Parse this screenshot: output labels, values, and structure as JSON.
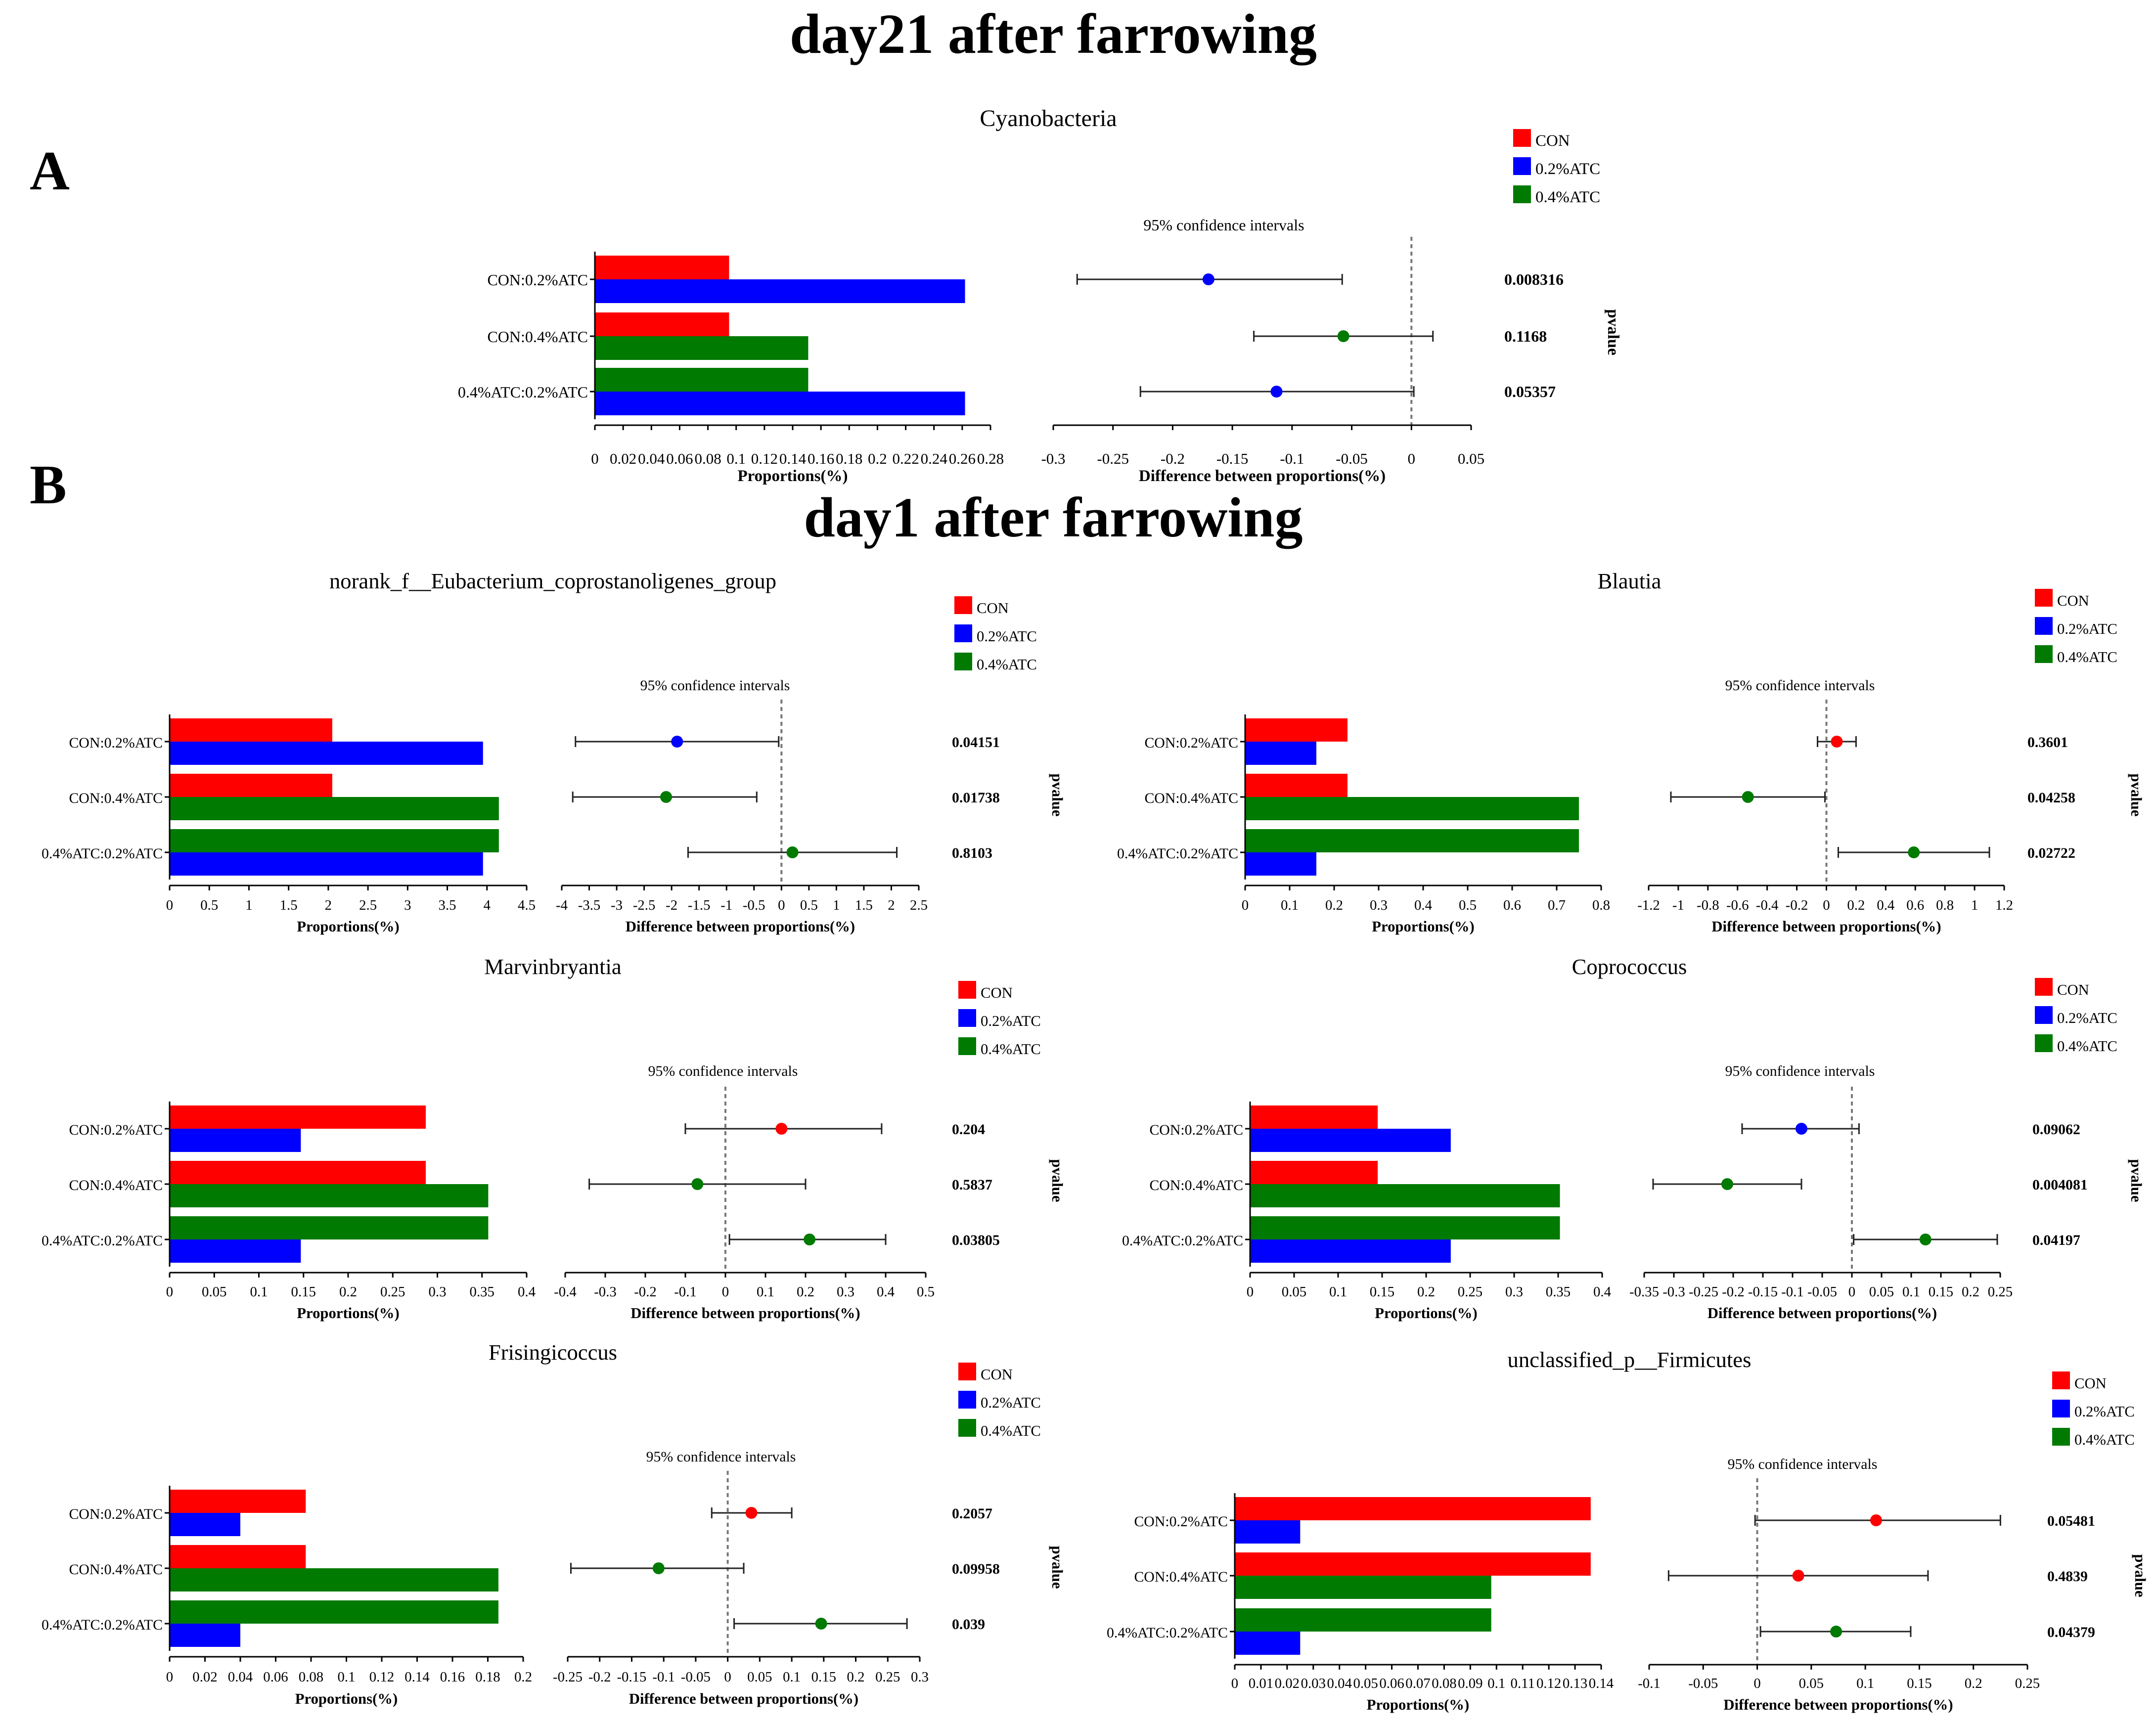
{
  "headings": {
    "top": "day21 after farrowing",
    "middle": "day1 after farrowing",
    "section_a": "A",
    "section_b": "B"
  },
  "common": {
    "xlabel_left": "Proportions(%)",
    "xlabel_right": "Difference between proportions(%)",
    "ci_label": "95% confidence intervals",
    "pvalue_label": "pvalue",
    "legend": [
      "CON",
      "0.2%ATC",
      "0.4%ATC"
    ],
    "colors": {
      "CON": "#ff0000",
      "0.2%ATC": "#0000ff",
      "0.4%ATC": "#007a00"
    },
    "comparisons": [
      "CON:0.2%ATC",
      "CON:0.4%ATC",
      "0.4%ATC:0.2%ATC"
    ]
  },
  "chart_data": [
    {
      "type": "bar",
      "title": "Cyanobacteria",
      "means": {
        "CON": 0.095,
        "0.2%ATC": 0.262,
        "0.4%ATC": 0.151
      },
      "bar_xlim": [
        0,
        0.28
      ],
      "bar_ticks": [
        "0",
        "0.02",
        "0.04",
        "0.06",
        "0.08",
        "0.1",
        "0.12",
        "0.14",
        "0.16",
        "0.18",
        "0.2",
        "0.22",
        "0.24",
        "0.26",
        "0.28"
      ],
      "diff_xlim": [
        -0.3,
        0.05
      ],
      "diff_ticks": [
        "-0.3",
        "-0.25",
        "-0.2",
        "-0.15",
        "-0.1",
        "-0.05",
        "0",
        "0.05"
      ],
      "diffs": [
        {
          "comparison": "CON:0.2%ATC",
          "estimate": -0.17,
          "low": -0.28,
          "high": -0.058,
          "color_group": "0.2%ATC",
          "pvalue": "0.008316"
        },
        {
          "comparison": "CON:0.4%ATC",
          "estimate": -0.057,
          "low": -0.132,
          "high": 0.018,
          "color_group": "0.4%ATC",
          "pvalue": "0.1168"
        },
        {
          "comparison": "0.4%ATC:0.2%ATC",
          "estimate": -0.113,
          "low": -0.227,
          "high": 0.002,
          "color_group": "0.2%ATC",
          "pvalue": "0.05357"
        }
      ]
    },
    {
      "type": "bar",
      "title": "norank_f__Eubacterium_coprostanoligenes_group",
      "means": {
        "CON": 2.05,
        "0.2%ATC": 3.95,
        "0.4%ATC": 4.15
      },
      "bar_xlim": [
        0,
        4.5
      ],
      "bar_ticks": [
        "0",
        "0.5",
        "1",
        "1.5",
        "2",
        "2.5",
        "3",
        "3.5",
        "4",
        "4.5"
      ],
      "diff_xlim": [
        -4,
        2.5
      ],
      "diff_ticks": [
        "-4",
        "-3.5",
        "-3",
        "-2.5",
        "-2",
        "-1.5",
        "-1",
        "-0.5",
        "0",
        "0.5",
        "1",
        "1.5",
        "2",
        "2.5"
      ],
      "diffs": [
        {
          "comparison": "CON:0.2%ATC",
          "estimate": -1.9,
          "low": -3.75,
          "high": -0.05,
          "color_group": "0.2%ATC",
          "pvalue": "0.04151"
        },
        {
          "comparison": "CON:0.4%ATC",
          "estimate": -2.1,
          "low": -3.8,
          "high": -0.45,
          "color_group": "0.4%ATC",
          "pvalue": "0.01738"
        },
        {
          "comparison": "0.4%ATC:0.2%ATC",
          "estimate": 0.2,
          "low": -1.7,
          "high": 2.1,
          "color_group": "0.4%ATC",
          "pvalue": "0.8103"
        }
      ]
    },
    {
      "type": "bar",
      "title": "Blautia",
      "means": {
        "CON": 0.23,
        "0.2%ATC": 0.16,
        "0.4%ATC": 0.75
      },
      "bar_xlim": [
        0,
        0.8
      ],
      "bar_ticks": [
        "0",
        "0.1",
        "0.2",
        "0.3",
        "0.4",
        "0.5",
        "0.6",
        "0.7",
        "0.8"
      ],
      "diff_xlim": [
        -1.2,
        1.2
      ],
      "diff_ticks": [
        "-1.2",
        "-1",
        "-0.8",
        "-0.6",
        "-0.4",
        "-0.2",
        "0",
        "0.2",
        "0.4",
        "0.6",
        "0.8",
        "1",
        "1.2"
      ],
      "diffs": [
        {
          "comparison": "CON:0.2%ATC",
          "estimate": 0.07,
          "low": -0.06,
          "high": 0.2,
          "color_group": "CON",
          "pvalue": "0.3601"
        },
        {
          "comparison": "CON:0.4%ATC",
          "estimate": -0.53,
          "low": -1.05,
          "high": -0.01,
          "color_group": "0.4%ATC",
          "pvalue": "0.04258"
        },
        {
          "comparison": "0.4%ATC:0.2%ATC",
          "estimate": 0.59,
          "low": 0.08,
          "high": 1.1,
          "color_group": "0.4%ATC",
          "pvalue": "0.02722"
        }
      ]
    },
    {
      "type": "bar",
      "title": "Marvinbryantia",
      "means": {
        "CON": 0.287,
        "0.2%ATC": 0.147,
        "0.4%ATC": 0.357
      },
      "bar_xlim": [
        0,
        0.4
      ],
      "bar_ticks": [
        "0",
        "0.05",
        "0.1",
        "0.15",
        "0.2",
        "0.25",
        "0.3",
        "0.35",
        "0.4"
      ],
      "diff_xlim": [
        -0.4,
        0.5
      ],
      "diff_ticks": [
        "-0.4",
        "-0.3",
        "-0.2",
        "-0.1",
        "0",
        "0.1",
        "0.2",
        "0.3",
        "0.4",
        "0.5"
      ],
      "diffs": [
        {
          "comparison": "CON:0.2%ATC",
          "estimate": 0.14,
          "low": -0.1,
          "high": 0.39,
          "color_group": "CON",
          "pvalue": "0.204"
        },
        {
          "comparison": "CON:0.4%ATC",
          "estimate": -0.07,
          "low": -0.34,
          "high": 0.2,
          "color_group": "0.4%ATC",
          "pvalue": "0.5837"
        },
        {
          "comparison": "0.4%ATC:0.2%ATC",
          "estimate": 0.21,
          "low": 0.01,
          "high": 0.4,
          "color_group": "0.4%ATC",
          "pvalue": "0.03805"
        }
      ]
    },
    {
      "type": "bar",
      "title": "Coprococcus",
      "means": {
        "CON": 0.145,
        "0.2%ATC": 0.228,
        "0.4%ATC": 0.352
      },
      "bar_xlim": [
        0,
        0.4
      ],
      "bar_ticks": [
        "0",
        "0.05",
        "0.1",
        "0.15",
        "0.2",
        "0.25",
        "0.3",
        "0.35",
        "0.4"
      ],
      "diff_xlim": [
        -0.35,
        0.25
      ],
      "diff_ticks": [
        "-0.35",
        "-0.3",
        "-0.25",
        "-0.2",
        "-0.15",
        "-0.1",
        "-0.05",
        "0",
        "0.05",
        "0.1",
        "0.15",
        "0.2",
        "0.25"
      ],
      "diffs": [
        {
          "comparison": "CON:0.2%ATC",
          "estimate": -0.085,
          "low": -0.185,
          "high": 0.012,
          "color_group": "0.2%ATC",
          "pvalue": "0.09062"
        },
        {
          "comparison": "CON:0.4%ATC",
          "estimate": -0.21,
          "low": -0.335,
          "high": -0.085,
          "color_group": "0.4%ATC",
          "pvalue": "0.004081"
        },
        {
          "comparison": "0.4%ATC:0.2%ATC",
          "estimate": 0.124,
          "low": 0.003,
          "high": 0.245,
          "color_group": "0.4%ATC",
          "pvalue": "0.04197"
        }
      ]
    },
    {
      "type": "bar",
      "title": "Frisingicoccus",
      "means": {
        "CON": 0.077,
        "0.2%ATC": 0.04,
        "0.4%ATC": 0.186
      },
      "bar_xlim": [
        0,
        0.2
      ],
      "bar_ticks": [
        "0",
        "0.02",
        "0.04",
        "0.06",
        "0.08",
        "0.1",
        "0.12",
        "0.14",
        "0.16",
        "0.18",
        "0.2"
      ],
      "diff_xlim": [
        -0.25,
        0.3
      ],
      "diff_ticks": [
        "-0.25",
        "-0.2",
        "-0.15",
        "-0.1",
        "-0.05",
        "0",
        "0.05",
        "0.1",
        "0.15",
        "0.2",
        "0.25",
        "0.3"
      ],
      "diffs": [
        {
          "comparison": "CON:0.2%ATC",
          "estimate": 0.037,
          "low": -0.025,
          "high": 0.1,
          "color_group": "CON",
          "pvalue": "0.2057"
        },
        {
          "comparison": "CON:0.4%ATC",
          "estimate": -0.108,
          "low": -0.245,
          "high": 0.025,
          "color_group": "0.4%ATC",
          "pvalue": "0.09958"
        },
        {
          "comparison": "0.4%ATC:0.2%ATC",
          "estimate": 0.146,
          "low": 0.01,
          "high": 0.28,
          "color_group": "0.4%ATC",
          "pvalue": "0.039"
        }
      ]
    },
    {
      "type": "bar",
      "title": "unclassified_p__Firmicutes",
      "means": {
        "CON": 0.136,
        "0.2%ATC": 0.025,
        "0.4%ATC": 0.098
      },
      "bar_xlim": [
        0,
        0.14
      ],
      "bar_ticks": [
        "0",
        "0.01",
        "0.02",
        "0.03",
        "0.04",
        "0.05",
        "0.06",
        "0.07",
        "0.08",
        "0.09",
        "0.1",
        "0.11",
        "0.12",
        "0.13",
        "0.14"
      ],
      "diff_xlim": [
        -0.1,
        0.25
      ],
      "diff_ticks": [
        "-0.1",
        "-0.05",
        "0",
        "0.05",
        "0.1",
        "0.15",
        "0.2",
        "0.25"
      ],
      "diffs": [
        {
          "comparison": "CON:0.2%ATC",
          "estimate": 0.11,
          "low": -0.002,
          "high": 0.225,
          "color_group": "CON",
          "pvalue": "0.05481"
        },
        {
          "comparison": "CON:0.4%ATC",
          "estimate": 0.038,
          "low": -0.082,
          "high": 0.158,
          "color_group": "CON",
          "pvalue": "0.4839"
        },
        {
          "comparison": "0.4%ATC:0.2%ATC",
          "estimate": 0.073,
          "low": 0.003,
          "high": 0.142,
          "color_group": "0.4%ATC",
          "pvalue": "0.04379"
        }
      ]
    }
  ]
}
